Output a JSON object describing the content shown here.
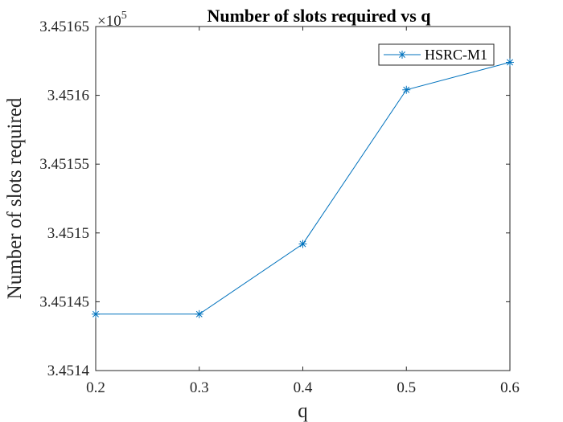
{
  "chart_data": {
    "type": "line",
    "title": "Number of slots required vs q",
    "xlabel": "q",
    "ylabel": "Number of slots required",
    "y_multiplier": {
      "base": "×10",
      "exponent": "5"
    },
    "xlim": [
      0.2,
      0.6
    ],
    "ylim": [
      3.4514,
      3.45165
    ],
    "x_ticks": [
      "0.2",
      "0.3",
      "0.4",
      "0.5",
      "0.6"
    ],
    "y_ticks": [
      "3.4514",
      "3.45145",
      "3.4515",
      "3.45155",
      "3.4516",
      "3.45165"
    ],
    "grid": false,
    "legend_position": "top-right",
    "series": [
      {
        "name": "HSRC-M1",
        "color": "#0072BD",
        "marker": "asterisk",
        "x": [
          0.2,
          0.3,
          0.4,
          0.5,
          0.6
        ],
        "y": [
          3.451441,
          3.451441,
          3.451492,
          3.451604,
          3.451624
        ]
      }
    ]
  }
}
